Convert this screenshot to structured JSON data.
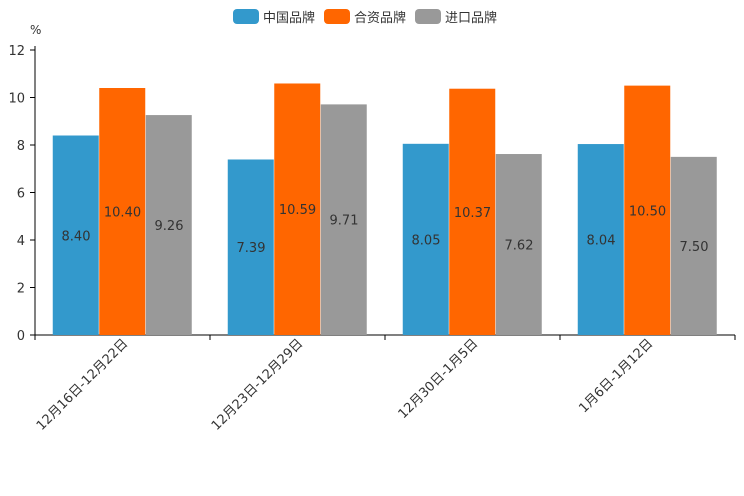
{
  "chart_data": {
    "type": "bar",
    "unit": "%",
    "categories": [
      "12月16日-12月22日",
      "12月23日-12月29日",
      "12月30日-1月5日",
      "1月6日-1月12日"
    ],
    "series": [
      {
        "name": "中国品牌",
        "color": "#3399cc",
        "values": [
          8.4,
          7.39,
          8.05,
          8.04
        ],
        "labels": [
          "8.40",
          "7.39",
          "8.05",
          "8.04"
        ]
      },
      {
        "name": "合资品牌",
        "color": "#ff6600",
        "values": [
          10.4,
          10.59,
          10.37,
          10.5
        ],
        "labels": [
          "10.40",
          "10.59",
          "10.37",
          "10.50"
        ]
      },
      {
        "name": "进口品牌",
        "color": "#999999",
        "values": [
          9.26,
          9.71,
          7.62,
          7.5
        ],
        "labels": [
          "9.26",
          "9.71",
          "7.62",
          "7.50"
        ]
      }
    ],
    "ylim": [
      0,
      12
    ],
    "yticks": [
      "0",
      "2",
      "4",
      "6",
      "8",
      "10",
      "12"
    ],
    "legend_position": "top-center",
    "grid": false
  }
}
